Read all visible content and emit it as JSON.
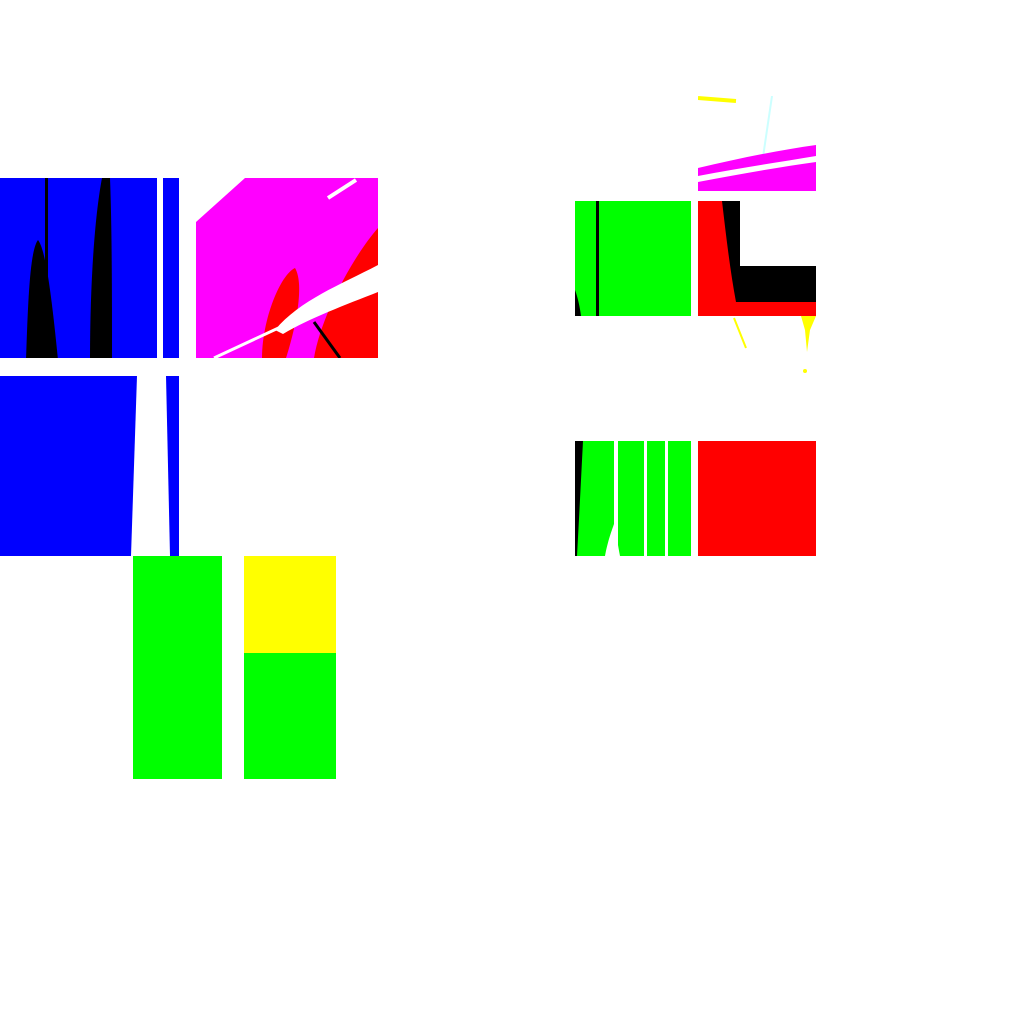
{
  "colors": {
    "background": "#ffffff",
    "blue": "#0000ff",
    "magenta": "#ff00ff",
    "green": "#00ff00",
    "red": "#ff0000",
    "yellow": "#ffff00",
    "black": "#000000",
    "white": "#ffffff",
    "cyan": "#ccffff"
  },
  "groups": [
    {
      "name": "left-cluster",
      "tiles": [
        "blue-tile-top",
        "magenta-tile",
        "blue-tile-bottom",
        "green-column-tile",
        "yellow-green-column-tile"
      ]
    },
    {
      "name": "right-cluster",
      "tiles": [
        "green-tile-top",
        "red-black-tile",
        "magenta-strip-tile",
        "green-tile-bottom",
        "red-tile-bottom"
      ]
    }
  ]
}
